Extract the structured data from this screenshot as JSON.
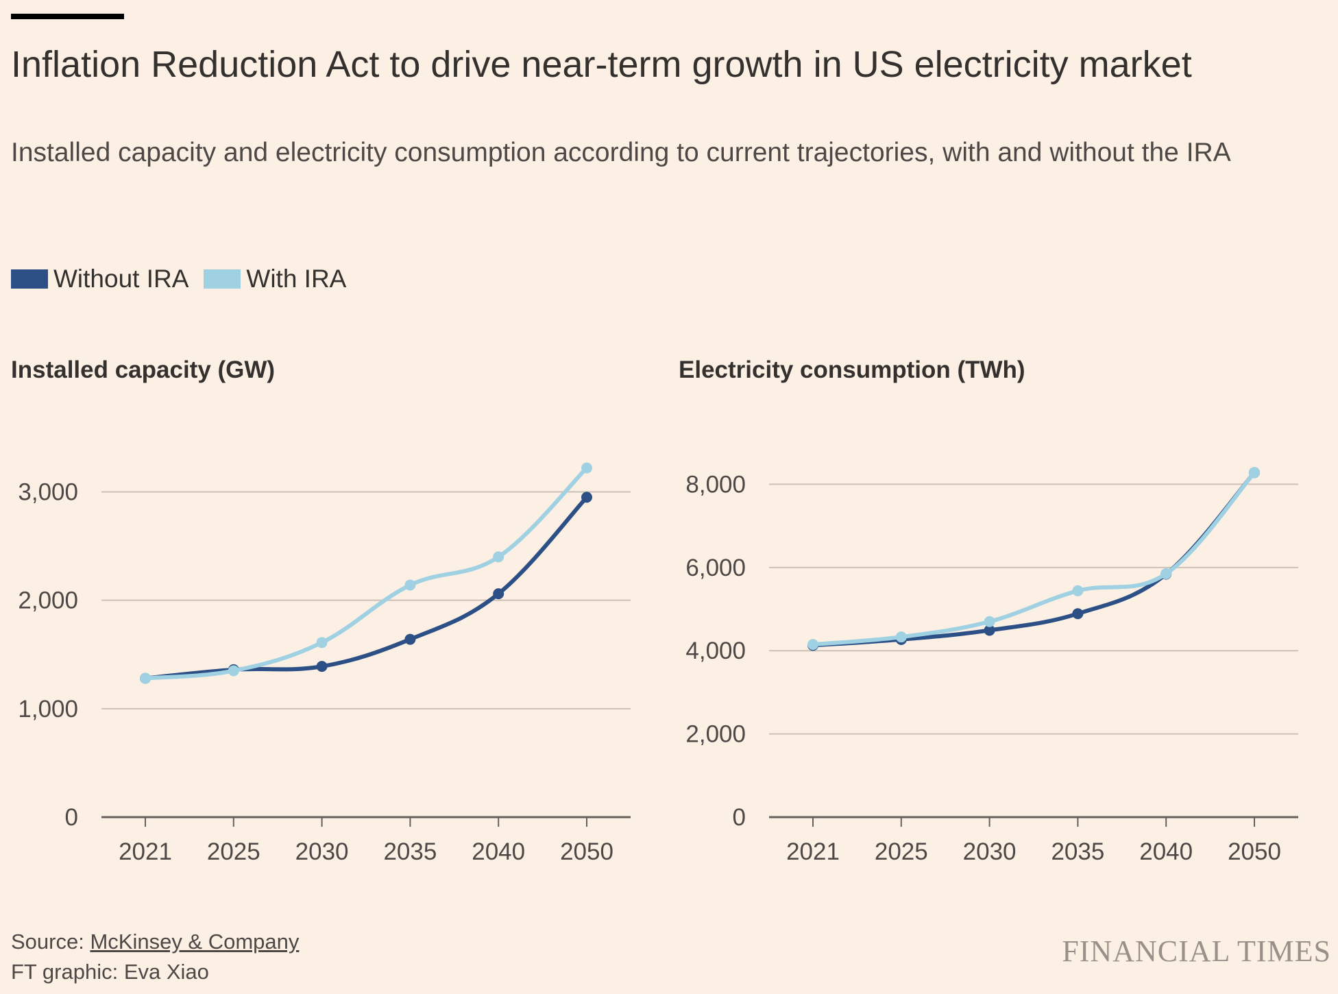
{
  "header": {
    "title": "Inflation Reduction Act to drive near-term growth in US electricity market",
    "subtitle": "Installed capacity and electricity consumption according to current trajectories, with and without the IRA"
  },
  "legend": [
    {
      "label": "Without IRA",
      "color": "#2c4f85"
    },
    {
      "label": "With IRA",
      "color": "#9fd1e3"
    }
  ],
  "footer": {
    "source_prefix": "Source: ",
    "source_link": "McKinsey & Company",
    "credit": "FT graphic: Eva Xiao",
    "logo": "FINANCIAL TIMES"
  },
  "chart_data": [
    {
      "type": "line",
      "title": "Installed capacity (GW)",
      "categories": [
        "2021",
        "2025",
        "2030",
        "2035",
        "2040",
        "2050"
      ],
      "ylim": [
        0,
        3300
      ],
      "yticks": [
        0,
        1000,
        2000,
        3000
      ],
      "ytick_labels": [
        "0",
        "1,000",
        "2,000",
        "3,000"
      ],
      "grid": true,
      "series": [
        {
          "name": "Without IRA",
          "color": "#2c4f85",
          "values": [
            1280,
            1360,
            1390,
            1640,
            2060,
            2950
          ]
        },
        {
          "name": "With IRA",
          "color": "#9fd1e3",
          "values": [
            1280,
            1350,
            1610,
            2140,
            2400,
            3220
          ]
        }
      ]
    },
    {
      "type": "line",
      "title": "Electricity consumption (TWh)",
      "categories": [
        "2021",
        "2025",
        "2030",
        "2035",
        "2040",
        "2050"
      ],
      "ylim": [
        0,
        8600
      ],
      "yticks": [
        0,
        2000,
        4000,
        6000,
        8000
      ],
      "ytick_labels": [
        "0",
        "2,000",
        "4,000",
        "6,000",
        "8,000"
      ],
      "grid": true,
      "series": [
        {
          "name": "Without IRA",
          "color": "#2c4f85",
          "values": [
            4130,
            4270,
            4490,
            4890,
            5840,
            8280
          ]
        },
        {
          "name": "With IRA",
          "color": "#9fd1e3",
          "values": [
            4150,
            4330,
            4700,
            5440,
            5850,
            8280
          ]
        }
      ]
    }
  ]
}
